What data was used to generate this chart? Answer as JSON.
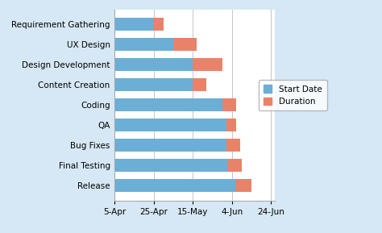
{
  "tasks": [
    "Requirement Gathering",
    "UX Design",
    "Design Development",
    "Content Creation",
    "Coding",
    "QA",
    "Bug Fixes",
    "Final Testing",
    "Release"
  ],
  "start_dates": [
    0,
    0,
    0,
    0,
    0,
    0,
    0,
    0,
    0
  ],
  "blue_widths": [
    20,
    30,
    40,
    40,
    55,
    57,
    57,
    58,
    62
  ],
  "durations": [
    5,
    12,
    15,
    7,
    7,
    5,
    7,
    7,
    8
  ],
  "x_ticks": [
    0,
    20,
    40,
    60,
    80
  ],
  "x_tick_labels": [
    "5-Apr",
    "25-Apr",
    "15-May",
    "4-Jun",
    "24-Jun"
  ],
  "bar_color_start": "#6baed6",
  "bar_color_duration": "#e8836a",
  "legend_start": "Start Date",
  "legend_duration": "Duration",
  "bg_color": "#d6e8f5",
  "chart_bg": "#ffffff",
  "xlim": [
    0,
    82
  ]
}
